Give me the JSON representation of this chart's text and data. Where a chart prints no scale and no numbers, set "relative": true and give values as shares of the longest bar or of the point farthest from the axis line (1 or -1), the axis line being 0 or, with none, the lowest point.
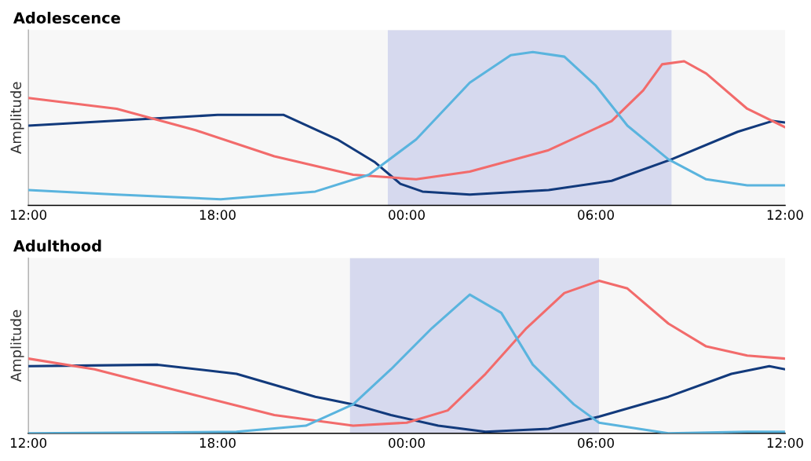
{
  "chart_data": [
    {
      "type": "line",
      "title": "Adolescence",
      "ylabel": "Amplitude",
      "relative": true,
      "xlim": [
        "2000-01-01T12:00",
        "2000-01-02T12:00"
      ],
      "xticks": [
        {
          "value": "2000-01-01T12:00",
          "label": "12:00"
        },
        {
          "value": "2000-01-01T18:00",
          "label": "18:00"
        },
        {
          "value": "2000-01-02T00:00",
          "label": "00:00"
        },
        {
          "value": "2000-01-02T06:00",
          "label": "06:00"
        },
        {
          "value": "2000-01-02T12:00",
          "label": "12:00"
        }
      ],
      "bands": [
        {
          "axis": "x",
          "from": "2000-01-01T23:24",
          "to": "2000-01-02T08:24",
          "color": "#d6d9ee"
        }
      ],
      "series": [
        {
          "color": "#123a7c",
          "x": [
            "2000-01-01T12:00",
            "2000-01-01T18:00",
            "2000-01-01T20:06",
            "2000-01-01T21:48",
            "2000-01-01T23:00",
            "2000-01-01T23:48",
            "2000-01-02T00:30",
            "2000-01-02T02:00",
            "2000-01-02T04:30",
            "2000-01-02T06:30",
            "2000-01-02T08:24",
            "2000-01-02T10:30",
            "2000-01-02T11:36",
            "2000-01-02T12:00"
          ],
          "values": [
            0.52,
            0.59,
            0.59,
            0.43,
            0.28,
            0.14,
            0.09,
            0.07,
            0.1,
            0.16,
            0.3,
            0.48,
            0.55,
            0.54
          ]
        },
        {
          "color": "#f26b6b",
          "x": [
            "2000-01-01T12:00",
            "2000-01-01T14:48",
            "2000-01-01T17:18",
            "2000-01-01T19:48",
            "2000-01-01T22:18",
            "2000-01-02T00:18",
            "2000-01-02T02:00",
            "2000-01-02T04:30",
            "2000-01-02T06:30",
            "2000-01-02T07:30",
            "2000-01-02T08:06",
            "2000-01-02T08:48",
            "2000-01-02T09:30",
            "2000-01-02T10:48",
            "2000-01-02T12:00"
          ],
          "values": [
            0.7,
            0.63,
            0.49,
            0.32,
            0.2,
            0.17,
            0.22,
            0.36,
            0.55,
            0.75,
            0.92,
            0.94,
            0.86,
            0.63,
            0.51
          ]
        },
        {
          "color": "#5ab4de",
          "x": [
            "2000-01-01T12:00",
            "2000-01-01T14:48",
            "2000-01-01T18:06",
            "2000-01-01T21:06",
            "2000-01-01T22:48",
            "2000-01-02T00:18",
            "2000-01-02T02:00",
            "2000-01-02T03:18",
            "2000-01-02T04:00",
            "2000-01-02T05:00",
            "2000-01-02T06:00",
            "2000-01-02T07:00",
            "2000-01-02T08:18",
            "2000-01-02T09:30",
            "2000-01-02T10:48",
            "2000-01-02T12:00"
          ],
          "values": [
            0.1,
            0.07,
            0.04,
            0.09,
            0.2,
            0.43,
            0.8,
            0.98,
            1.0,
            0.97,
            0.78,
            0.52,
            0.3,
            0.17,
            0.13,
            0.13
          ]
        }
      ]
    },
    {
      "type": "line",
      "title": "Adulthood",
      "ylabel": "Amplitude",
      "relative": true,
      "xlim": [
        "2000-01-01T12:00",
        "2000-01-02T12:00"
      ],
      "xticks": [
        {
          "value": "2000-01-01T12:00",
          "label": "12:00"
        },
        {
          "value": "2000-01-01T18:00",
          "label": "18:00"
        },
        {
          "value": "2000-01-02T00:00",
          "label": "00:00"
        },
        {
          "value": "2000-01-02T06:00",
          "label": "06:00"
        },
        {
          "value": "2000-01-02T12:00",
          "label": "12:00"
        }
      ],
      "bands": [
        {
          "axis": "x",
          "from": "2000-01-01T22:12",
          "to": "2000-01-02T06:06",
          "color": "#d6d9ee"
        }
      ],
      "series": [
        {
          "color": "#123a7c",
          "x": [
            "2000-01-01T12:00",
            "2000-01-01T16:06",
            "2000-01-01T18:36",
            "2000-01-01T21:06",
            "2000-01-01T22:18",
            "2000-01-01T23:30",
            "2000-01-02T01:00",
            "2000-01-02T02:30",
            "2000-01-02T04:30",
            "2000-01-02T06:06",
            "2000-01-02T08:18",
            "2000-01-02T10:18",
            "2000-01-02T11:30",
            "2000-01-02T12:00"
          ],
          "values": [
            0.44,
            0.45,
            0.39,
            0.24,
            0.19,
            0.12,
            0.05,
            0.01,
            0.03,
            0.11,
            0.24,
            0.39,
            0.44,
            0.42
          ]
        },
        {
          "color": "#f26b6b",
          "x": [
            "2000-01-01T12:00",
            "2000-01-01T14:06",
            "2000-01-01T17:18",
            "2000-01-01T19:48",
            "2000-01-01T22:18",
            "2000-01-02T00:00",
            "2000-01-02T01:18",
            "2000-01-02T02:30",
            "2000-01-02T03:48",
            "2000-01-02T05:00",
            "2000-01-02T06:06",
            "2000-01-02T07:00",
            "2000-01-02T08:18",
            "2000-01-02T09:30",
            "2000-01-02T10:48",
            "2000-01-02T12:00"
          ],
          "values": [
            0.49,
            0.42,
            0.25,
            0.12,
            0.05,
            0.07,
            0.15,
            0.39,
            0.69,
            0.92,
            1.0,
            0.95,
            0.72,
            0.57,
            0.51,
            0.49
          ]
        },
        {
          "color": "#5ab4de",
          "x": [
            "2000-01-01T12:00",
            "2000-01-01T18:36",
            "2000-01-01T20:48",
            "2000-01-01T22:18",
            "2000-01-01T23:30",
            "2000-01-02T00:48",
            "2000-01-02T02:00",
            "2000-01-02T03:00",
            "2000-01-02T04:00",
            "2000-01-02T05:18",
            "2000-01-02T06:06",
            "2000-01-02T08:18",
            "2000-01-02T10:48",
            "2000-01-02T12:00"
          ],
          "values": [
            0.0,
            0.01,
            0.05,
            0.19,
            0.42,
            0.69,
            0.91,
            0.79,
            0.45,
            0.19,
            0.07,
            0.0,
            0.01,
            0.01
          ]
        }
      ]
    }
  ]
}
